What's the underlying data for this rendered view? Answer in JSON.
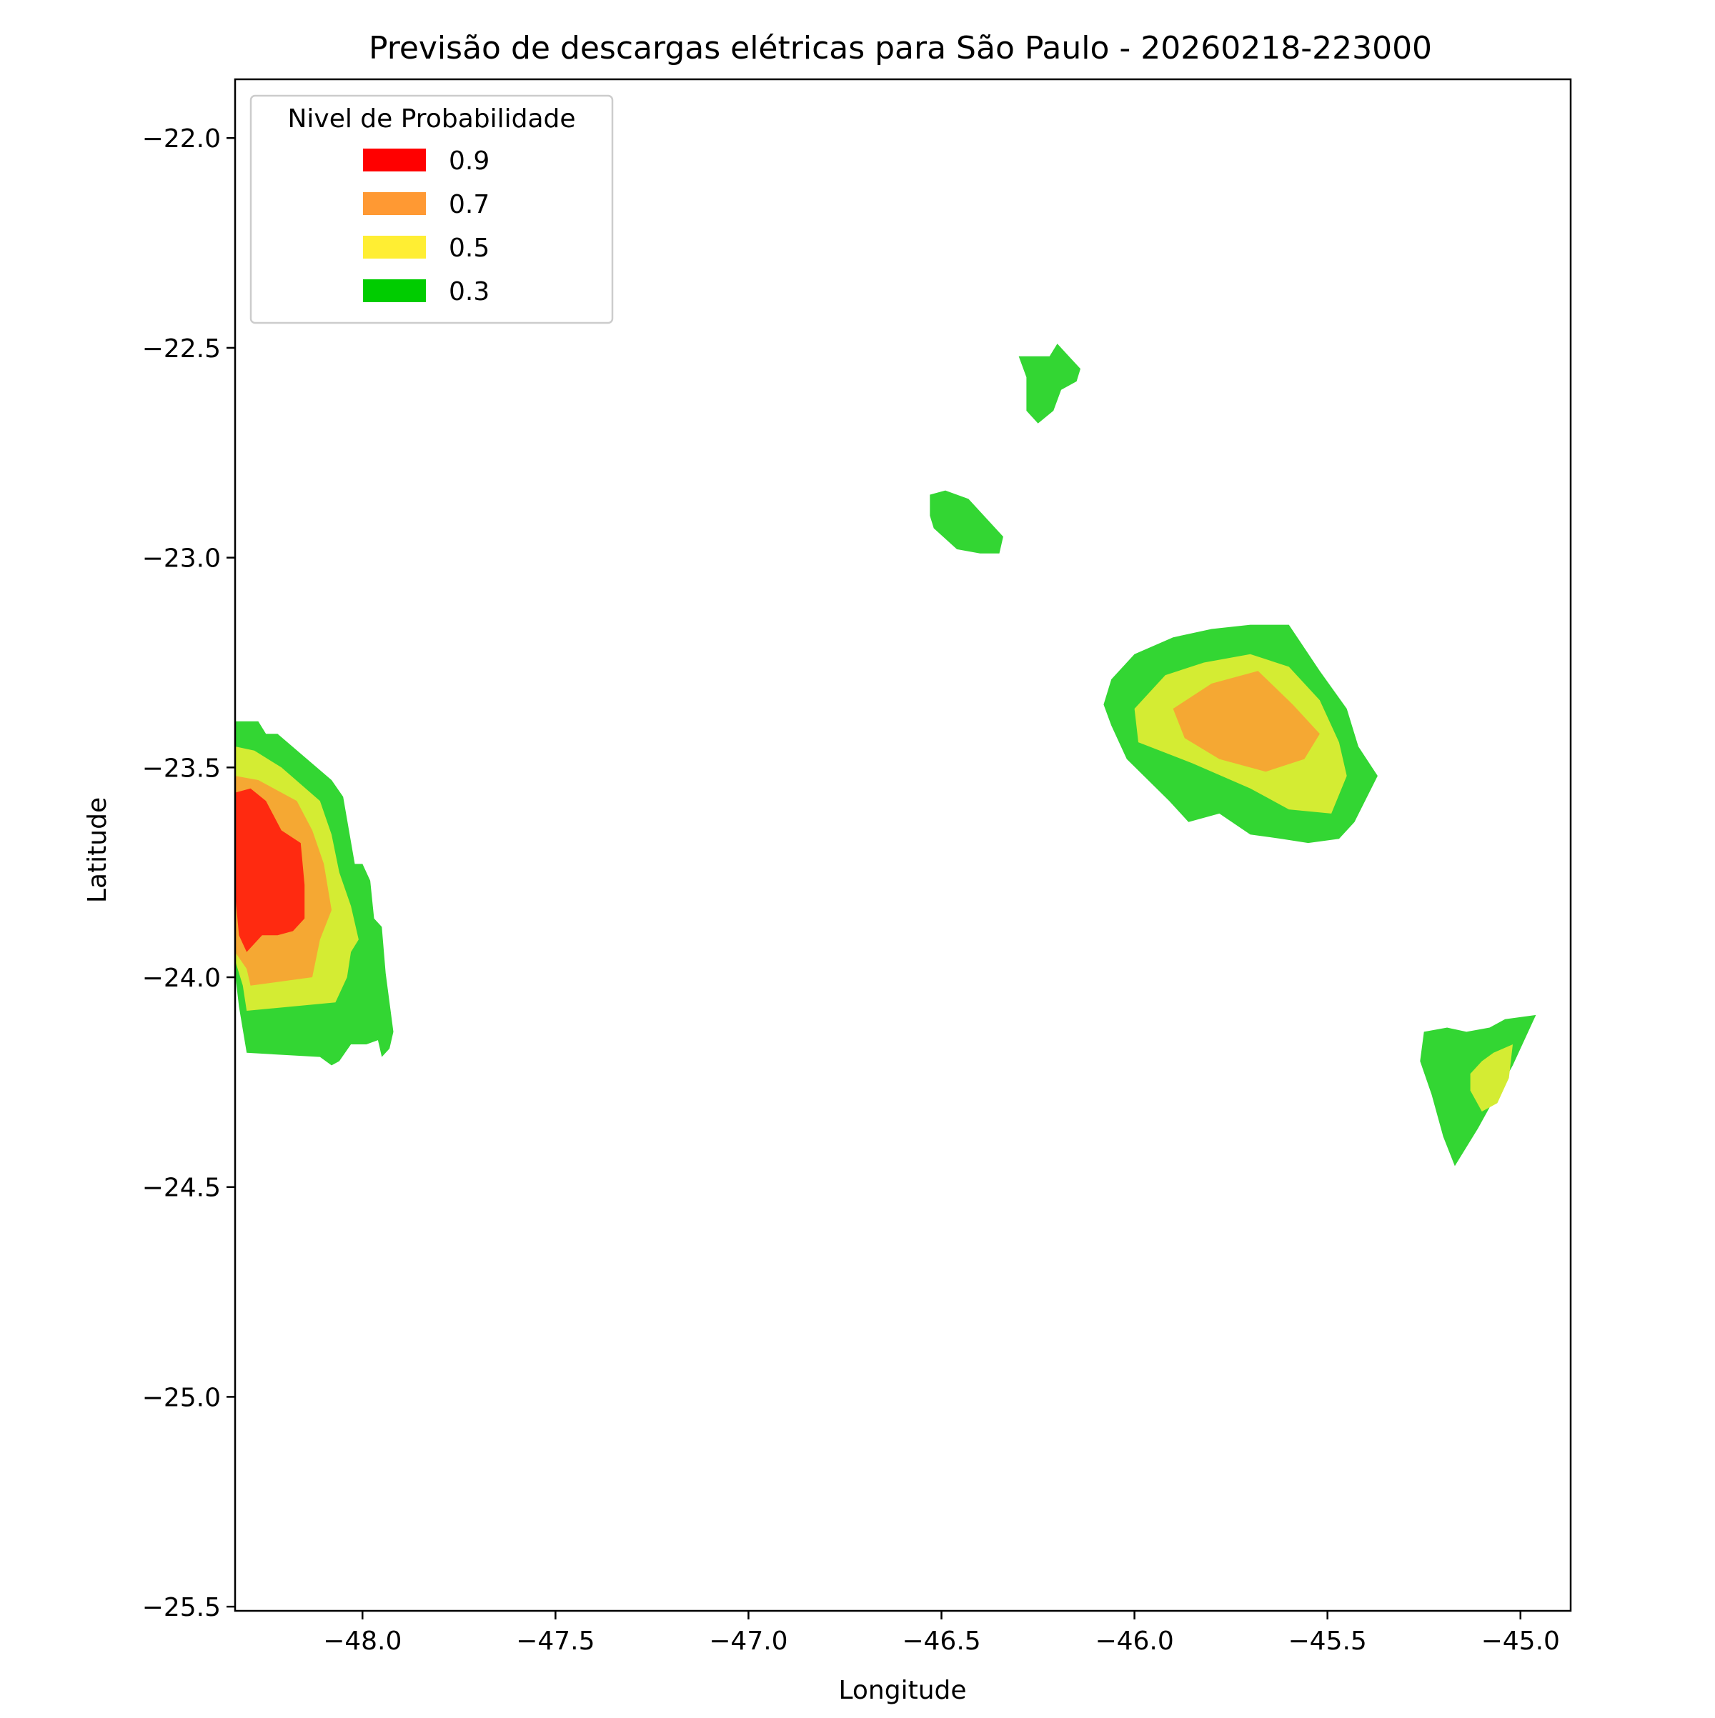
{
  "title": "Previsão de descargas elétricas para São Paulo - 20260218-223000",
  "xlabel": "Longitude",
  "ylabel": "Latitude",
  "chart_data": {
    "type": "contour-map",
    "xlim": [
      -48.33,
      -44.87
    ],
    "ylim": [
      -25.51,
      -21.86
    ],
    "x_ticks": [
      {
        "value": -48.0,
        "label": "−48.0"
      },
      {
        "value": -47.5,
        "label": "−47.5"
      },
      {
        "value": -47.0,
        "label": "−47.0"
      },
      {
        "value": -46.5,
        "label": "−46.5"
      },
      {
        "value": -46.0,
        "label": "−46.0"
      },
      {
        "value": -45.5,
        "label": "−45.5"
      },
      {
        "value": -45.0,
        "label": "−45.0"
      }
    ],
    "y_ticks": [
      {
        "value": -22.0,
        "label": "−22.0"
      },
      {
        "value": -22.5,
        "label": "−22.5"
      },
      {
        "value": -23.0,
        "label": "−23.0"
      },
      {
        "value": -23.5,
        "label": "−23.5"
      },
      {
        "value": -24.0,
        "label": "−24.0"
      },
      {
        "value": -24.5,
        "label": "−24.5"
      },
      {
        "value": -25.0,
        "label": "−25.0"
      },
      {
        "value": -25.5,
        "label": "−25.5"
      }
    ],
    "legend": {
      "title": "Nivel de Probabilidade",
      "placement": "upper-left",
      "entries": [
        {
          "label": "0.9",
          "color": "#ff0000"
        },
        {
          "label": "0.7",
          "color": "#ff9933"
        },
        {
          "label": "0.5",
          "color": "#ffee33"
        },
        {
          "label": "0.3",
          "color": "#00cc00"
        }
      ]
    },
    "fill_colors": {
      "0.3": "#33d633",
      "0.5": "#d4ec33",
      "0.7": "#f5a833",
      "0.9": "#ff2a10"
    },
    "regions": [
      {
        "level": "0.3",
        "points": [
          [
            -48.33,
            -23.39
          ],
          [
            -48.27,
            -23.39
          ],
          [
            -48.25,
            -23.42
          ],
          [
            -48.22,
            -23.42
          ],
          [
            -48.08,
            -23.53
          ],
          [
            -48.05,
            -23.57
          ],
          [
            -48.02,
            -23.73
          ],
          [
            -48.0,
            -23.73
          ],
          [
            -47.98,
            -23.77
          ],
          [
            -47.97,
            -23.86
          ],
          [
            -47.95,
            -23.88
          ],
          [
            -47.94,
            -23.99
          ],
          [
            -47.92,
            -24.13
          ],
          [
            -47.93,
            -24.17
          ],
          [
            -47.95,
            -24.19
          ],
          [
            -47.96,
            -24.15
          ],
          [
            -47.99,
            -24.16
          ],
          [
            -48.03,
            -24.16
          ],
          [
            -48.06,
            -24.2
          ],
          [
            -48.08,
            -24.21
          ],
          [
            -48.11,
            -24.19
          ],
          [
            -48.3,
            -24.18
          ],
          [
            -48.32,
            -24.07
          ],
          [
            -48.33,
            -23.99
          ]
        ]
      },
      {
        "level": "0.5",
        "points": [
          [
            -48.33,
            -23.45
          ],
          [
            -48.28,
            -23.46
          ],
          [
            -48.21,
            -23.5
          ],
          [
            -48.11,
            -23.58
          ],
          [
            -48.08,
            -23.66
          ],
          [
            -48.06,
            -23.75
          ],
          [
            -48.03,
            -23.83
          ],
          [
            -48.01,
            -23.91
          ],
          [
            -48.03,
            -23.94
          ],
          [
            -48.04,
            -24.0
          ],
          [
            -48.07,
            -24.06
          ],
          [
            -48.3,
            -24.08
          ],
          [
            -48.31,
            -24.02
          ],
          [
            -48.33,
            -23.96
          ]
        ]
      },
      {
        "level": "0.7",
        "points": [
          [
            -48.33,
            -23.52
          ],
          [
            -48.27,
            -23.53
          ],
          [
            -48.17,
            -23.58
          ],
          [
            -48.13,
            -23.65
          ],
          [
            -48.1,
            -23.73
          ],
          [
            -48.08,
            -23.84
          ],
          [
            -48.11,
            -23.91
          ],
          [
            -48.13,
            -24.0
          ],
          [
            -48.29,
            -24.02
          ],
          [
            -48.3,
            -23.98
          ],
          [
            -48.33,
            -23.94
          ]
        ]
      },
      {
        "level": "0.9",
        "points": [
          [
            -48.33,
            -23.56
          ],
          [
            -48.29,
            -23.55
          ],
          [
            -48.25,
            -23.58
          ],
          [
            -48.21,
            -23.65
          ],
          [
            -48.16,
            -23.68
          ],
          [
            -48.15,
            -23.78
          ],
          [
            -48.15,
            -23.86
          ],
          [
            -48.18,
            -23.89
          ],
          [
            -48.22,
            -23.9
          ],
          [
            -48.26,
            -23.9
          ],
          [
            -48.3,
            -23.94
          ],
          [
            -48.32,
            -23.9
          ],
          [
            -48.33,
            -23.8
          ]
        ]
      },
      {
        "level": "0.3",
        "points": [
          [
            -46.3,
            -22.52
          ],
          [
            -46.22,
            -22.52
          ],
          [
            -46.2,
            -22.49
          ],
          [
            -46.17,
            -22.52
          ],
          [
            -46.14,
            -22.55
          ],
          [
            -46.15,
            -22.58
          ],
          [
            -46.19,
            -22.6
          ],
          [
            -46.21,
            -22.65
          ],
          [
            -46.25,
            -22.68
          ],
          [
            -46.28,
            -22.65
          ],
          [
            -46.28,
            -22.57
          ]
        ]
      },
      {
        "level": "0.3",
        "points": [
          [
            -46.53,
            -22.85
          ],
          [
            -46.49,
            -22.84
          ],
          [
            -46.43,
            -22.86
          ],
          [
            -46.36,
            -22.93
          ],
          [
            -46.34,
            -22.95
          ],
          [
            -46.35,
            -22.99
          ],
          [
            -46.4,
            -22.99
          ],
          [
            -46.46,
            -22.98
          ],
          [
            -46.52,
            -22.93
          ],
          [
            -46.53,
            -22.9
          ]
        ]
      },
      {
        "level": "0.3",
        "points": [
          [
            -46.08,
            -23.35
          ],
          [
            -46.06,
            -23.29
          ],
          [
            -46.0,
            -23.23
          ],
          [
            -45.9,
            -23.19
          ],
          [
            -45.8,
            -23.17
          ],
          [
            -45.7,
            -23.16
          ],
          [
            -45.6,
            -23.16
          ],
          [
            -45.52,
            -23.27
          ],
          [
            -45.45,
            -23.36
          ],
          [
            -45.42,
            -23.45
          ],
          [
            -45.37,
            -23.52
          ],
          [
            -45.43,
            -23.63
          ],
          [
            -45.47,
            -23.67
          ],
          [
            -45.55,
            -23.68
          ],
          [
            -45.62,
            -23.67
          ],
          [
            -45.7,
            -23.66
          ],
          [
            -45.78,
            -23.61
          ],
          [
            -45.86,
            -23.63
          ],
          [
            -45.91,
            -23.58
          ],
          [
            -46.02,
            -23.48
          ],
          [
            -46.06,
            -23.4
          ]
        ]
      },
      {
        "level": "0.5",
        "points": [
          [
            -46.0,
            -23.36
          ],
          [
            -45.92,
            -23.28
          ],
          [
            -45.82,
            -23.25
          ],
          [
            -45.7,
            -23.23
          ],
          [
            -45.6,
            -23.26
          ],
          [
            -45.52,
            -23.34
          ],
          [
            -45.47,
            -23.44
          ],
          [
            -45.45,
            -23.52
          ],
          [
            -45.49,
            -23.61
          ],
          [
            -45.6,
            -23.6
          ],
          [
            -45.7,
            -23.55
          ],
          [
            -45.85,
            -23.49
          ],
          [
            -45.99,
            -23.44
          ]
        ]
      },
      {
        "level": "0.7",
        "points": [
          [
            -45.9,
            -23.36
          ],
          [
            -45.8,
            -23.3
          ],
          [
            -45.68,
            -23.27
          ],
          [
            -45.59,
            -23.35
          ],
          [
            -45.52,
            -23.42
          ],
          [
            -45.56,
            -23.48
          ],
          [
            -45.66,
            -23.51
          ],
          [
            -45.78,
            -23.48
          ],
          [
            -45.87,
            -23.43
          ]
        ]
      },
      {
        "level": "0.3",
        "points": [
          [
            -45.17,
            -24.45
          ],
          [
            -45.2,
            -24.38
          ],
          [
            -45.23,
            -24.28
          ],
          [
            -45.26,
            -24.2
          ],
          [
            -45.25,
            -24.13
          ],
          [
            -45.19,
            -24.12
          ],
          [
            -45.14,
            -24.13
          ],
          [
            -45.08,
            -24.12
          ],
          [
            -45.04,
            -24.1
          ],
          [
            -44.96,
            -24.09
          ],
          [
            -45.02,
            -24.21
          ],
          [
            -45.08,
            -24.31
          ],
          [
            -45.11,
            -24.36
          ]
        ]
      },
      {
        "level": "0.5",
        "points": [
          [
            -45.1,
            -24.32
          ],
          [
            -45.13,
            -24.27
          ],
          [
            -45.13,
            -24.23
          ],
          [
            -45.1,
            -24.2
          ],
          [
            -45.07,
            -24.18
          ],
          [
            -45.02,
            -24.16
          ],
          [
            -45.03,
            -24.24
          ],
          [
            -45.06,
            -24.3
          ]
        ]
      }
    ]
  }
}
